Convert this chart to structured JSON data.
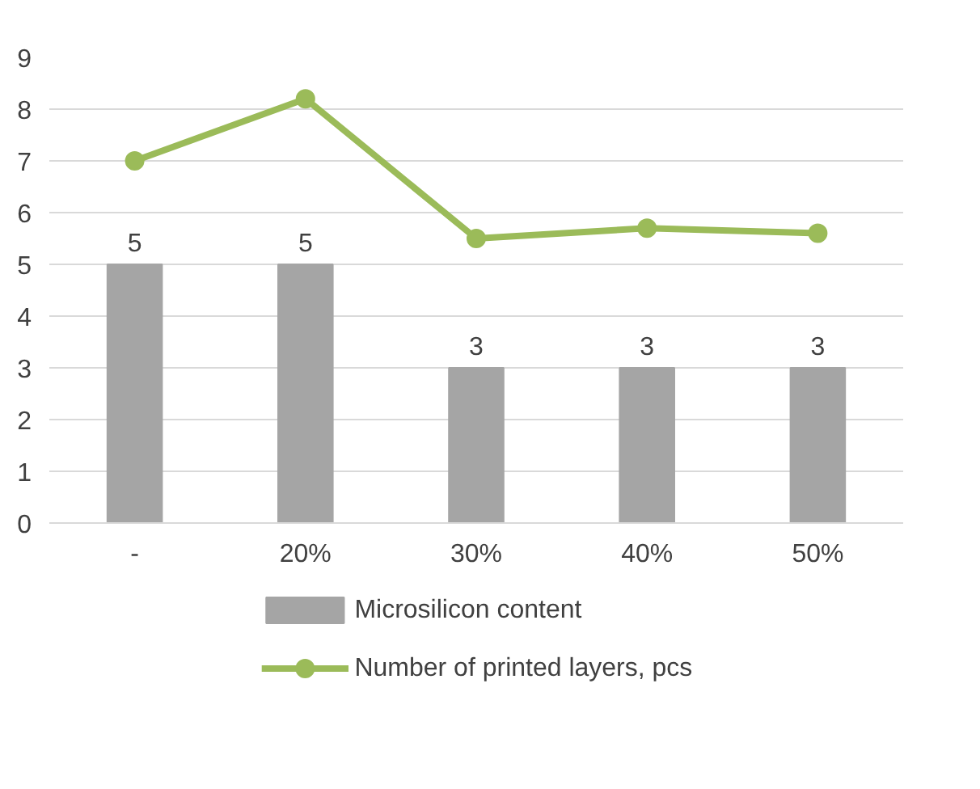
{
  "chart_data": {
    "type": "bar",
    "categories": [
      "-",
      "20%",
      "30%",
      "40%",
      "50%"
    ],
    "series": [
      {
        "name": "Microsilicon content",
        "color": "#a5a5a5",
        "values": [
          5,
          5,
          3,
          3,
          3
        ],
        "value_labels": [
          "5",
          "5",
          "3",
          "3",
          "3"
        ]
      },
      {
        "name": "Number of printed layers, pcs",
        "type": "line",
        "color": "#9bbb59",
        "values": [
          7,
          8.2,
          5.5,
          5.7,
          5.6
        ],
        "marker": "circle"
      }
    ],
    "ylim": [
      0,
      9
    ],
    "yticks": [
      0,
      1,
      2,
      3,
      4,
      5,
      6,
      7,
      8,
      9
    ],
    "grid": "y",
    "legend": "bottom"
  }
}
